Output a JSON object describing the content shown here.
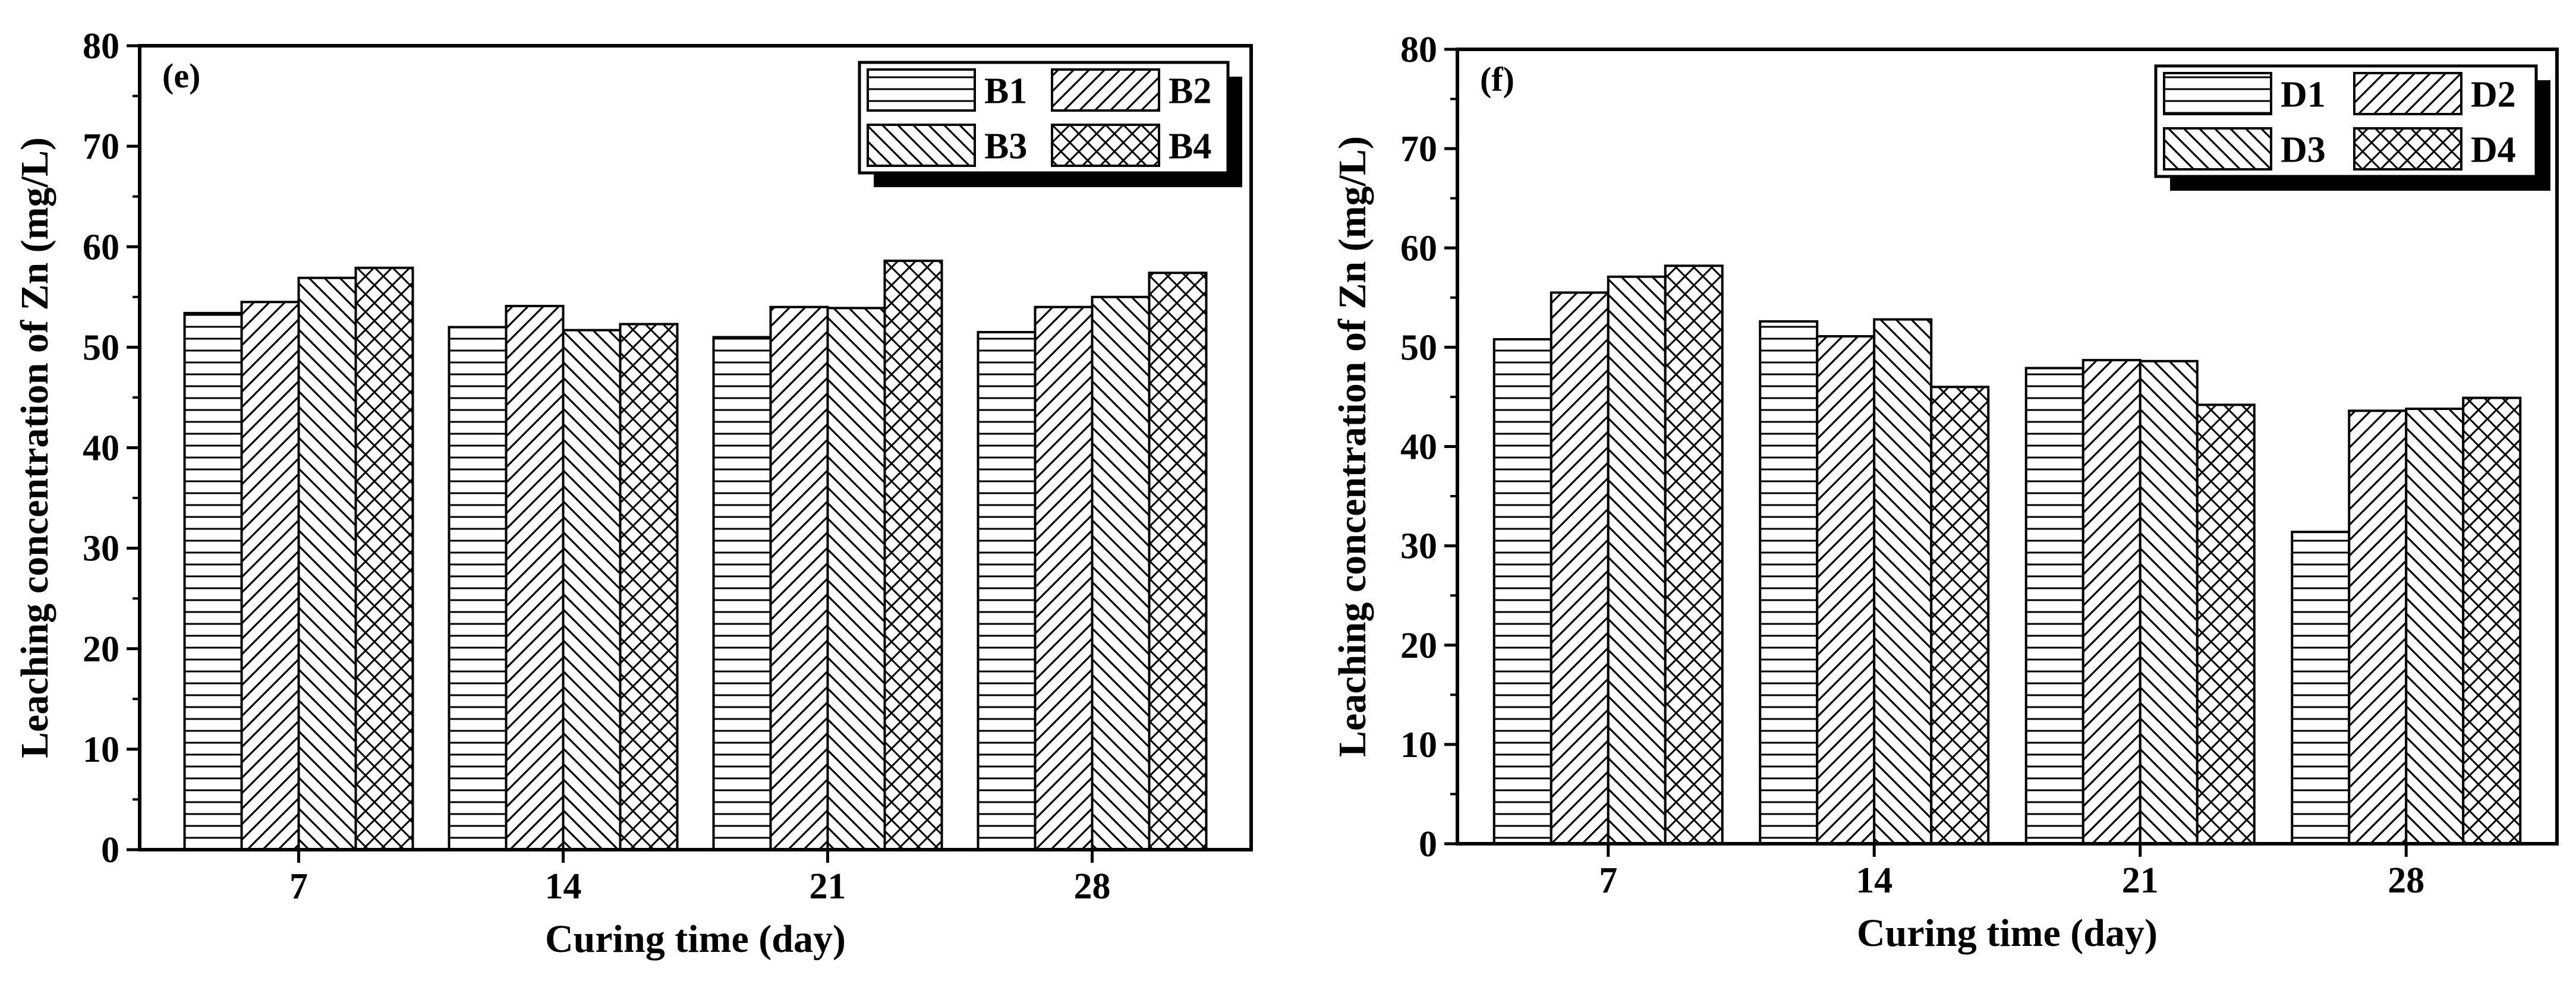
{
  "chart_data": [
    {
      "type": "bar",
      "panel_label": "(e)",
      "title": "",
      "xlabel": "Curing time (day)",
      "ylabel": "Leaching concentration of Zn (mg/L)",
      "categories": [
        "7",
        "14",
        "21",
        "28"
      ],
      "ylim": [
        0,
        80
      ],
      "yticks": [
        "0",
        "10",
        "20",
        "30",
        "40",
        "50",
        "60",
        "70",
        "80"
      ],
      "legend_position": "top-right",
      "grid": false,
      "series": [
        {
          "name": "B1",
          "pattern": "horizontal",
          "values": [
            53.4,
            52.0,
            51.0,
            51.5
          ]
        },
        {
          "name": "B2",
          "pattern": "forward-diagonal",
          "values": [
            54.5,
            54.1,
            54.0,
            54.0
          ]
        },
        {
          "name": "B3",
          "pattern": "back-diagonal",
          "values": [
            56.9,
            51.7,
            53.9,
            55.0
          ]
        },
        {
          "name": "B4",
          "pattern": "crosshatch",
          "values": [
            57.9,
            52.3,
            58.6,
            57.4
          ]
        }
      ]
    },
    {
      "type": "bar",
      "panel_label": "(f)",
      "title": "",
      "xlabel": "Curing time (day)",
      "ylabel": "Leaching concentration of Zn (mg/L)",
      "categories": [
        "7",
        "14",
        "21",
        "28"
      ],
      "ylim": [
        0,
        80
      ],
      "yticks": [
        "0",
        "10",
        "20",
        "30",
        "40",
        "50",
        "60",
        "70",
        "80"
      ],
      "legend_position": "top-right",
      "grid": false,
      "series": [
        {
          "name": "D1",
          "pattern": "horizontal",
          "values": [
            50.8,
            52.6,
            47.9,
            31.4
          ]
        },
        {
          "name": "D2",
          "pattern": "forward-diagonal",
          "values": [
            55.5,
            51.1,
            48.7,
            43.6
          ]
        },
        {
          "name": "D3",
          "pattern": "back-diagonal",
          "values": [
            57.1,
            52.8,
            48.6,
            43.8
          ]
        },
        {
          "name": "D4",
          "pattern": "crosshatch",
          "values": [
            58.2,
            46.0,
            44.2,
            44.9
          ]
        }
      ]
    }
  ]
}
